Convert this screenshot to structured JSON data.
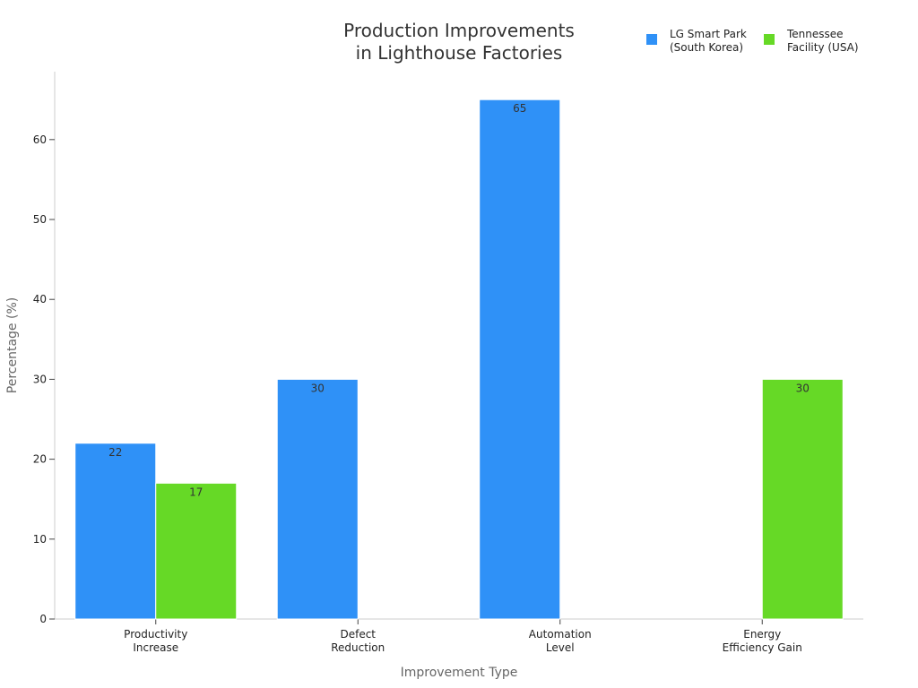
{
  "chart_data": {
    "type": "bar",
    "title_lines": [
      "Production Improvements",
      "in Lighthouse Factories"
    ],
    "xlabel": "Improvement Type",
    "ylabel": "Percentage (%)",
    "categories": [
      [
        "Productivity",
        "Increase"
      ],
      [
        "Defect",
        "Reduction"
      ],
      [
        "Automation",
        "Level"
      ],
      [
        "Energy",
        "Efficiency Gain"
      ]
    ],
    "series": [
      {
        "name_lines": [
          "LG Smart Park",
          "(South Korea)"
        ],
        "color": "#2f91f7",
        "values": [
          22,
          30,
          65,
          null
        ]
      },
      {
        "name_lines": [
          "Tennessee",
          "Facility (USA)"
        ],
        "color": "#66d926",
        "values": [
          17,
          null,
          null,
          30
        ]
      }
    ],
    "ylim": [
      0,
      68.5
    ],
    "yticks": [
      0,
      10,
      20,
      30,
      40,
      50,
      60
    ],
    "grid": false,
    "legend_position": "top-right"
  }
}
